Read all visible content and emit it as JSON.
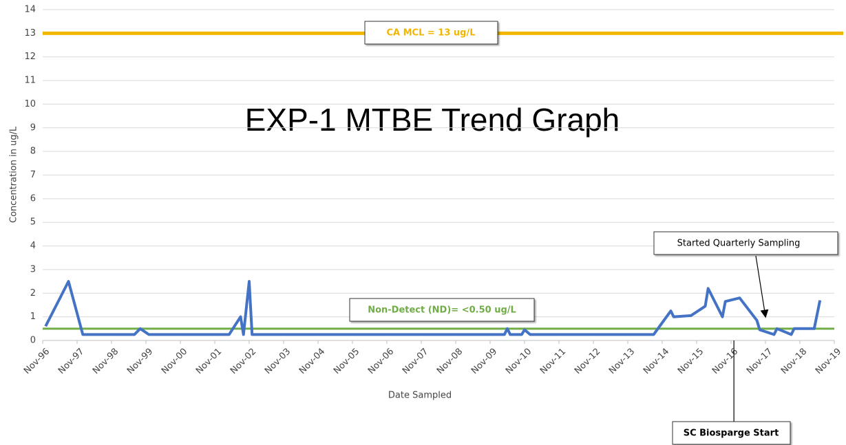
{
  "chart_data": {
    "type": "line",
    "title": "EXP-1 MTBE Trend Graph",
    "y_label": "Concentration in ug/L",
    "x_label": "Date Sampled",
    "color": "#4472c4",
    "x": [
      "1996-12",
      "1997-08",
      "1998-01",
      "1999-07",
      "1999-09",
      "1999-12",
      "2002-04",
      "2002-08",
      "2002-09",
      "2002-11",
      "2002-12",
      "2010-04",
      "2010-05",
      "2010-06",
      "2010-10",
      "2010-11",
      "2011-01",
      "2014-08",
      "2015-02",
      "2015-03",
      "2015-09",
      "2016-02",
      "2016-03",
      "2016-08",
      "2016-09",
      "2017-02",
      "2017-08",
      "2017-09",
      "2018-02",
      "2018-03",
      "2018-08",
      "2018-09",
      "2019-04",
      "2019-06"
    ],
    "values": [
      0.6,
      2.5,
      0.25,
      0.25,
      0.5,
      0.25,
      0.25,
      1,
      0.25,
      2.5,
      0.25,
      0.25,
      0.5,
      0.25,
      0.25,
      0.45,
      0.25,
      0.25,
      1.25,
      1.0,
      1.05,
      1.45,
      2.2,
      1.0,
      1.65,
      1.8,
      0.85,
      0.45,
      0.25,
      0.5,
      0.25,
      0.5,
      0.5,
      1.7
    ],
    "xlim": [
      "1996-11",
      "2019-11"
    ],
    "xticks": [
      {
        "value": "1996-11",
        "label": "Nov-96"
      },
      {
        "value": "1997-11",
        "label": "Nov-97"
      },
      {
        "value": "1998-11",
        "label": "Nov-98"
      },
      {
        "value": "1999-11",
        "label": "Nov-99"
      },
      {
        "value": "2000-11",
        "label": "Nov-00"
      },
      {
        "value": "2001-11",
        "label": "Nov-01"
      },
      {
        "value": "2002-11",
        "label": "Nov-02"
      },
      {
        "value": "2003-11",
        "label": "Nov-03"
      },
      {
        "value": "2004-11",
        "label": "Nov-04"
      },
      {
        "value": "2005-11",
        "label": "Nov-05"
      },
      {
        "value": "2006-11",
        "label": "Nov-06"
      },
      {
        "value": "2007-11",
        "label": "Nov-07"
      },
      {
        "value": "2008-11",
        "label": "Nov-08"
      },
      {
        "value": "2009-11",
        "label": "Nov-09"
      },
      {
        "value": "2010-11",
        "label": "Nov-10"
      },
      {
        "value": "2011-11",
        "label": "Nov-11"
      },
      {
        "value": "2012-11",
        "label": "Nov-12"
      },
      {
        "value": "2013-11",
        "label": "Nov-13"
      },
      {
        "value": "2014-11",
        "label": "Nov-14"
      },
      {
        "value": "2015-11",
        "label": "Nov-15"
      },
      {
        "value": "2016-11",
        "label": "Nov-16"
      },
      {
        "value": "2017-11",
        "label": "Nov-17"
      },
      {
        "value": "2018-11",
        "label": "Nov-18"
      },
      {
        "value": "2019-11",
        "label": "Nov-19"
      }
    ],
    "ylim": [
      0,
      14
    ],
    "yticks": [
      0,
      1,
      2,
      3,
      4,
      5,
      6,
      7,
      8,
      9,
      10,
      11,
      12,
      13,
      14
    ],
    "grid": true,
    "reference_lines": [
      {
        "label": "CA MCL = 13 ug/L",
        "value": 13,
        "color": "#f2b600"
      },
      {
        "label": "Non-Detect (ND)= <0.50 ug/L",
        "value": 0.5,
        "color": "#70ad47"
      }
    ],
    "annotations": [
      {
        "text": "Started Quarterly Sampling",
        "x": "2017-11"
      },
      {
        "text": "SC Biosparge Start",
        "x": "2016-12"
      }
    ]
  }
}
